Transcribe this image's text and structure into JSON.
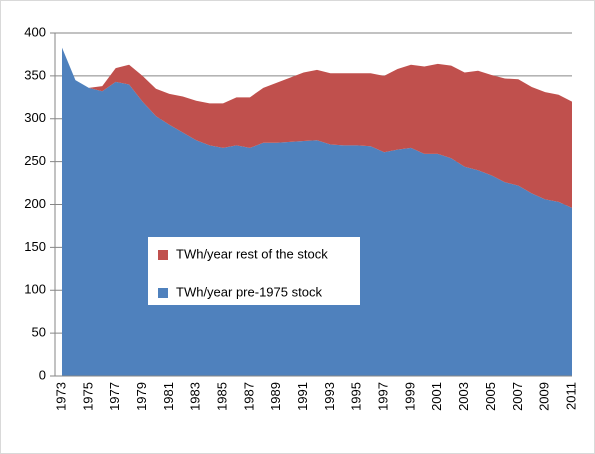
{
  "chart_data": {
    "type": "stacked-area",
    "categories": [
      "1973",
      null,
      "1975",
      null,
      "1977",
      null,
      "1979",
      null,
      "1981",
      null,
      "1983",
      null,
      "1985",
      null,
      "1987",
      null,
      "1989",
      null,
      "1991",
      null,
      "1993",
      null,
      "1995",
      null,
      "1997",
      null,
      "1999",
      null,
      "2001",
      null,
      "2003",
      null,
      "2005",
      null,
      "2007",
      null,
      "2009",
      null,
      "2011"
    ],
    "series": [
      {
        "name": "TWh/year pre-1975 stock",
        "color": "#4f81bd",
        "values": [
          383,
          345,
          336,
          332,
          343,
          340,
          320,
          303,
          293,
          284,
          275,
          269,
          266,
          269,
          266,
          272,
          272,
          273,
          274,
          275,
          270,
          269,
          269,
          268,
          261,
          264,
          266,
          259,
          259,
          254,
          244,
          240,
          234,
          226,
          222,
          213,
          206,
          203,
          196
        ]
      },
      {
        "name": "TWh/year rest of the stock",
        "color": "#c0504d",
        "values": [
          0,
          0,
          0,
          6,
          16,
          23,
          30,
          32,
          36,
          42,
          46,
          49,
          52,
          56,
          59,
          64,
          70,
          75,
          80,
          82,
          83,
          84,
          84,
          85,
          89,
          94,
          97,
          102,
          105,
          108,
          110,
          116,
          117,
          121,
          124,
          124,
          125,
          125,
          124
        ]
      }
    ],
    "ylim": [
      0,
      400
    ],
    "yticks": [
      0,
      50,
      100,
      150,
      200,
      250,
      300,
      350,
      400
    ],
    "grid": true
  }
}
